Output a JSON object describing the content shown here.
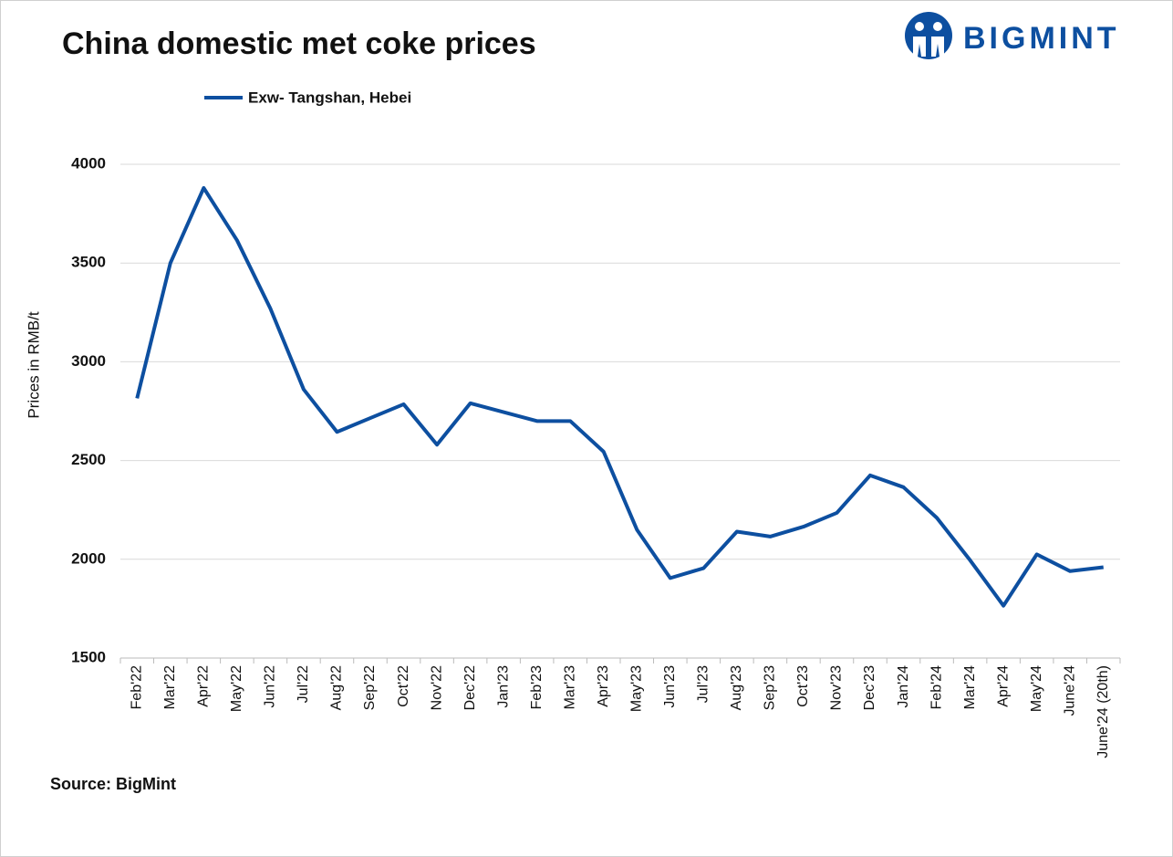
{
  "brand": "BIGMINT",
  "chart_data": {
    "type": "line",
    "title": "China domestic met coke prices",
    "y_label": "Prices in RMB/t",
    "source": "Source: BigMint",
    "categories": [
      "Feb'22",
      "Mar'22",
      "Apr'22",
      "May'22",
      "Jun'22",
      "Jul'22",
      "Aug'22",
      "Sep'22",
      "Oct'22",
      "Nov'22",
      "Dec'22",
      "Jan'23",
      "Feb'23",
      "Mar'23",
      "Apr'23",
      "May'23",
      "Jun'23",
      "Jul'23",
      "Aug'23",
      "Sep'23",
      "Oct'23",
      "Nov'23",
      "Dec'23",
      "Jan'24",
      "Feb'24",
      "Mar'24",
      "Apr'24",
      "May'24",
      "June'24",
      "June'24 (20th)"
    ],
    "series": [
      {
        "name": "Exw- Tangshan, Hebei",
        "color": "#0d4fa0",
        "values": [
          2815,
          3500,
          3880,
          3615,
          3270,
          2860,
          2645,
          2715,
          2785,
          2580,
          2790,
          2745,
          2700,
          2700,
          2545,
          2150,
          1905,
          1955,
          2140,
          2115,
          2165,
          2235,
          2425,
          2365,
          2210,
          1995,
          1765,
          2025,
          1940,
          1960
        ]
      }
    ],
    "ylim": [
      1500,
      4000
    ],
    "yticks": [
      1500,
      2000,
      2500,
      3000,
      3500,
      4000
    ],
    "grid": true,
    "legend": "top"
  }
}
